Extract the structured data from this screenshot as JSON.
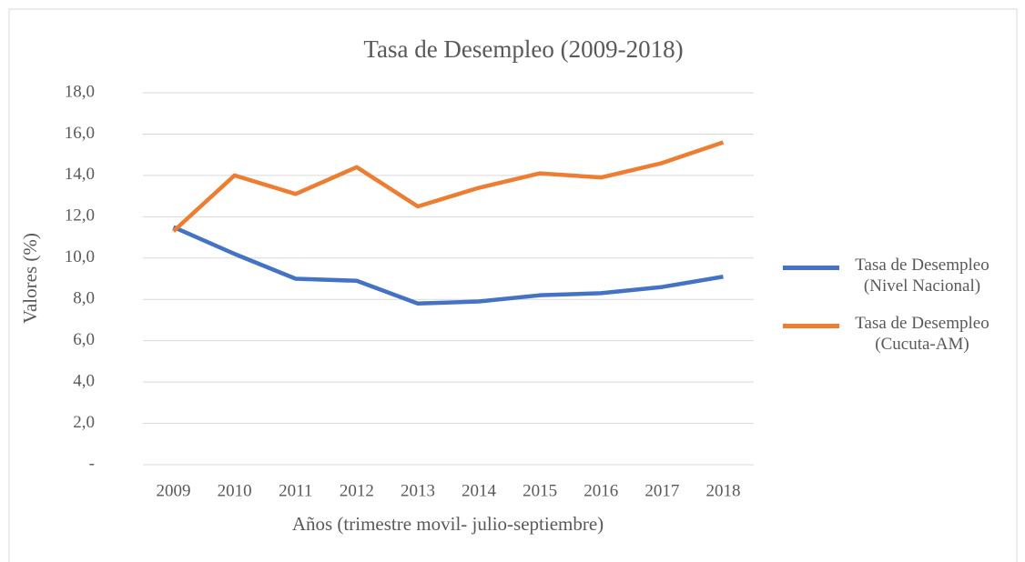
{
  "chart_data": {
    "type": "line",
    "title": "Tasa de Desempleo (2009-2018)",
    "x_label": "Años (trimestre movil- julio-septiembre)",
    "y_label": "Valores (%)",
    "categories": [
      "2009",
      "2010",
      "2011",
      "2012",
      "2013",
      "2014",
      "2015",
      "2016",
      "2017",
      "2018"
    ],
    "series": [
      {
        "name": "Tasa de Desempleo (Nivel Nacional)",
        "color": "#4472c4",
        "values": [
          11.5,
          10.2,
          9.0,
          8.9,
          7.8,
          7.9,
          8.2,
          8.3,
          8.6,
          9.1
        ]
      },
      {
        "name": "Tasa de Desempleo (Cucuta-AM)",
        "color": "#ed7d31",
        "values": [
          11.3,
          14.0,
          13.1,
          14.4,
          12.5,
          13.4,
          14.1,
          13.9,
          14.6,
          15.6
        ]
      }
    ],
    "ylim": [
      0,
      18
    ],
    "yticks": [
      {
        "value": 0,
        "label": "-"
      },
      {
        "value": 2,
        "label": "2,0"
      },
      {
        "value": 4,
        "label": "4,0"
      },
      {
        "value": 6,
        "label": "6,0"
      },
      {
        "value": 8,
        "label": "8,0"
      },
      {
        "value": 10,
        "label": "10,0"
      },
      {
        "value": 12,
        "label": "12,0"
      },
      {
        "value": 14,
        "label": "14,0"
      },
      {
        "value": 16,
        "label": "16,0"
      },
      {
        "value": 18,
        "label": "18,0"
      }
    ],
    "grid": true,
    "legend": "right"
  }
}
